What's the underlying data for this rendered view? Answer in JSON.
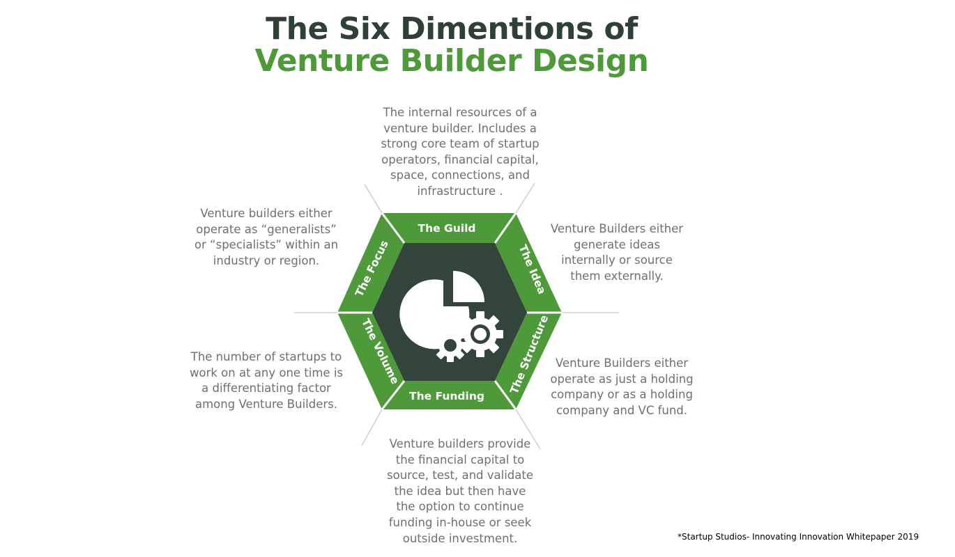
{
  "title": {
    "line1": "The Six Dimentions of",
    "line2": "Venture Builder Design"
  },
  "colors": {
    "title_dark": "#2f4034",
    "title_green": "#4e9a3a",
    "segment_green": "#4e9a3a",
    "core_dark": "#33443a",
    "divider_white": "#ffffff",
    "connector_gray": "#c8c8c8",
    "text_gray": "#6f6f6f"
  },
  "center_icon": "pie-chart-with-gears-icon",
  "dimensions": [
    {
      "key": "guild",
      "label": "The Guild",
      "description": "The internal resources of a\nventure builder. Includes a\nstrong core team of startup\noperators, financial capital,\nspace, connections, and\ninfrastructure ."
    },
    {
      "key": "idea",
      "label": "The Idea",
      "description": "Venture Builders either\ngenerate ideas\ninternally or source\nthem externally."
    },
    {
      "key": "structure",
      "label": "The Structure",
      "description": "Venture Builders either\noperate as just a holding\ncompany or as a holding\ncompany and VC fund."
    },
    {
      "key": "funding",
      "label": "The Funding",
      "description": "Venture builders provide\nthe financial capital to\nsource, test, and validate\nthe idea but then have\nthe option to continue\nfunding in-house or seek\noutside investment."
    },
    {
      "key": "volume",
      "label": "The Volume",
      "description": "The number of startups to\nwork on at any one time is\na differentiating factor\namong Venture Builders."
    },
    {
      "key": "focus",
      "label": "The Focus",
      "description": "Venture builders either\noperate as “generalists”\nor “specialists” within an\nindustry or region."
    }
  ],
  "footnote": "*Startup Studios- Innovating Innovation Whitepaper 2019"
}
